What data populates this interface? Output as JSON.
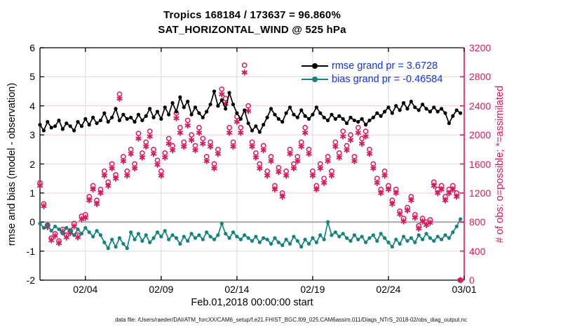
{
  "title": {
    "line1": "Tropics 168184 / 173637 = 96.860%",
    "line2": "SAT_HORIZONTAL_WIND @ 525 hPa"
  },
  "legend": [
    {
      "label": "rmse grand pr = 3.6728",
      "color": "#000000",
      "text_color": "#1432e6"
    },
    {
      "label": "bias grand pr = -0.46584",
      "color": "#12837d",
      "text_color": "#1432e6"
    }
  ],
  "footer": "data file: /Users/raeder/DAI/ATM_forcXX/CAM6_setup/f.e21.FHIST_BGC.f09_025.CAM6assim.011/Diags_NTrS_2018-02/obs_diag_output.nc",
  "colors": {
    "crimson": "#de1759",
    "teal": "#12837d",
    "black": "#000000",
    "grid_h": "#f3cdd9",
    "grid_v": "#d9dade",
    "zero_line": "#a8a8a8",
    "legend_text": "#1432e6"
  },
  "chart_data": {
    "type": "line",
    "title": "Tropics 168184 / 173637 = 96.860% | SAT_HORIZONTAL_WIND @ 525 hPa",
    "xlabel": "Feb.01,2018 00:00:00 start",
    "ylabel_left": "rmse and bias (model - observation)",
    "ylabel_right": "# of obs: o=possible; *=assimilated",
    "ylim_left": [
      -2,
      6
    ],
    "ylim_right": [
      0,
      3200
    ],
    "yticks_left": [
      -2,
      -1,
      0,
      1,
      2,
      3,
      4,
      5,
      6
    ],
    "yticks_right": [
      0,
      400,
      800,
      1200,
      1600,
      2000,
      2400,
      2800,
      3200
    ],
    "xticks": [
      {
        "day": 3,
        "label": "02/04"
      },
      {
        "day": 8,
        "label": "02/09"
      },
      {
        "day": 13,
        "label": "02/14"
      },
      {
        "day": 18,
        "label": "02/19"
      },
      {
        "day": 23,
        "label": "02/24"
      },
      {
        "day": 28,
        "label": "03/01"
      }
    ],
    "x_days_range": [
      0,
      28
    ],
    "x_start_day": 0,
    "x_step_days": 0.25,
    "grid": true,
    "legend_position": "top-right-inside",
    "stats": {
      "rmse_grand_pr": 3.6728,
      "bias_grand_pr": -0.46584
    },
    "series": [
      {
        "name": "rmse",
        "axis": "left",
        "color": "#000000",
        "marker": "dot",
        "line": true,
        "values": [
          3.35,
          3.15,
          3.45,
          3.25,
          3.3,
          3.5,
          3.2,
          3.4,
          3.3,
          3.15,
          3.45,
          3.3,
          3.55,
          3.35,
          3.6,
          3.4,
          3.5,
          3.75,
          3.45,
          3.6,
          3.9,
          3.5,
          3.7,
          3.55,
          3.6,
          3.45,
          3.7,
          3.5,
          3.65,
          3.9,
          3.6,
          3.8,
          3.55,
          3.95,
          3.7,
          4.1,
          3.8,
          4.3,
          3.95,
          4.15,
          3.7,
          3.95,
          3.75,
          3.6,
          3.8,
          4.05,
          4.5,
          4.0,
          4.2,
          3.9,
          4.45,
          4.05,
          3.75,
          3.55,
          3.85,
          3.4,
          3.15,
          3.3,
          3.1,
          3.35,
          3.6,
          3.9,
          3.7,
          3.55,
          3.45,
          3.75,
          3.95,
          3.7,
          3.6,
          3.85,
          3.65,
          3.55,
          3.7,
          3.95,
          3.75,
          3.6,
          3.5,
          3.7,
          3.55,
          3.65,
          3.55,
          3.4,
          3.6,
          3.5,
          3.45,
          3.55,
          3.35,
          3.5,
          3.6,
          3.75,
          3.65,
          3.8,
          3.95,
          3.75,
          4.0,
          3.85,
          4.1,
          3.9,
          4.15,
          3.95,
          3.85,
          4.05,
          3.9,
          3.8,
          3.95,
          3.8,
          3.9,
          3.75,
          3.4,
          3.65,
          3.85,
          3.75
        ]
      },
      {
        "name": "bias",
        "axis": "left",
        "color": "#12837d",
        "marker": "dot",
        "line": true,
        "values": [
          -0.05,
          -0.2,
          -0.1,
          -0.3,
          -0.15,
          -0.25,
          -0.4,
          -0.2,
          -0.3,
          -0.45,
          -0.25,
          -0.4,
          -0.2,
          -0.35,
          -0.5,
          -0.3,
          -0.45,
          -0.7,
          -0.9,
          -0.6,
          -0.85,
          -0.55,
          -0.75,
          -0.9,
          -0.35,
          -0.6,
          -0.4,
          -0.65,
          -0.45,
          -0.7,
          -0.55,
          -0.35,
          -0.5,
          -0.3,
          -0.6,
          -0.45,
          -0.55,
          -0.75,
          -0.5,
          -0.65,
          -0.4,
          -0.55,
          -0.45,
          -0.6,
          -0.35,
          -0.5,
          -0.6,
          -0.45,
          -0.05,
          -0.4,
          -0.55,
          -0.35,
          -0.5,
          -0.6,
          -0.45,
          -0.55,
          -0.65,
          -0.5,
          -0.7,
          -0.55,
          -0.6,
          -0.75,
          -0.55,
          -0.7,
          -0.8,
          -0.6,
          -0.75,
          -0.5,
          -0.65,
          -0.85,
          -0.6,
          -0.75,
          -0.55,
          -0.7,
          -0.45,
          -0.6,
          0.0,
          -0.45,
          -0.35,
          -0.5,
          -0.4,
          -0.55,
          -0.65,
          -0.45,
          -0.6,
          -0.5,
          -0.7,
          -0.55,
          -0.45,
          -0.65,
          -0.4,
          -0.55,
          -0.7,
          -0.85,
          -0.6,
          -0.75,
          -0.5,
          -0.65,
          -0.55,
          -0.7,
          -0.45,
          -0.6,
          -0.4,
          -0.55,
          -0.65,
          -0.5,
          -0.6,
          -0.45,
          -0.55,
          -0.35,
          -0.15,
          0.1
        ]
      },
      {
        "name": "possible",
        "axis": "right",
        "color": "#de1759",
        "marker": "circle-open",
        "line": false,
        "values": [
          1340,
          1050,
          760,
          580,
          640,
          540,
          700,
          620,
          680,
          780,
          620,
          880,
          900,
          1150,
          1300,
          1100,
          1250,
          1500,
          1350,
          1600,
          1450,
          2560,
          1700,
          1500,
          1800,
          1600,
          2020,
          1750,
          1900,
          2050,
          1800,
          1650,
          1500,
          1750,
          1950,
          1850,
          2300,
          2100,
          1900,
          2200,
          2000,
          1850,
          2100,
          1950,
          1700,
          1900,
          1600,
          1800,
          2630,
          2500,
          2100,
          1900,
          2250,
          2100,
          2960,
          2400,
          1900,
          1750,
          1600,
          1850,
          1500,
          1700,
          1300,
          1550,
          1200,
          1500,
          1800,
          1600,
          1700,
          1900,
          2100,
          1800,
          1500,
          1300,
          1600,
          1400,
          1700,
          1500,
          1900,
          1750,
          2050,
          1850,
          2000,
          1700,
          2100,
          1950,
          2050,
          1800,
          1600,
          1400,
          1250,
          1500,
          1300,
          1100,
          1250,
          950,
          850,
          1000,
          1150,
          900,
          750,
          850,
          800,
          830,
          1350,
          1250,
          1300,
          1150,
          1250,
          1300,
          1200,
          0
        ]
      },
      {
        "name": "assimilated",
        "axis": "right",
        "color": "#de1759",
        "marker": "asterisk",
        "line": false,
        "values": [
          1300,
          1020,
          730,
          550,
          610,
          510,
          670,
          590,
          650,
          740,
          590,
          840,
          860,
          1100,
          1250,
          1050,
          1200,
          1440,
          1300,
          1540,
          1400,
          2500,
          1640,
          1440,
          1740,
          1540,
          1950,
          1690,
          1840,
          1980,
          1740,
          1590,
          1440,
          1690,
          1880,
          1790,
          2230,
          2030,
          1840,
          2130,
          1930,
          1790,
          2030,
          1880,
          1640,
          1840,
          1540,
          1740,
          2560,
          2430,
          2030,
          1840,
          2180,
          2030,
          2860,
          2330,
          1840,
          1690,
          1540,
          1790,
          1440,
          1640,
          1250,
          1490,
          1150,
          1440,
          1740,
          1540,
          1640,
          1840,
          2030,
          1740,
          1440,
          1250,
          1540,
          1340,
          1640,
          1440,
          1840,
          1690,
          1980,
          1790,
          1930,
          1640,
          2030,
          1880,
          1980,
          1740,
          1540,
          1340,
          1200,
          1440,
          1250,
          1050,
          1200,
          910,
          810,
          960,
          1100,
          860,
          710,
          810,
          760,
          790,
          1300,
          1200,
          1250,
          1100,
          1200,
          1250,
          1150,
          0
        ]
      }
    ]
  }
}
